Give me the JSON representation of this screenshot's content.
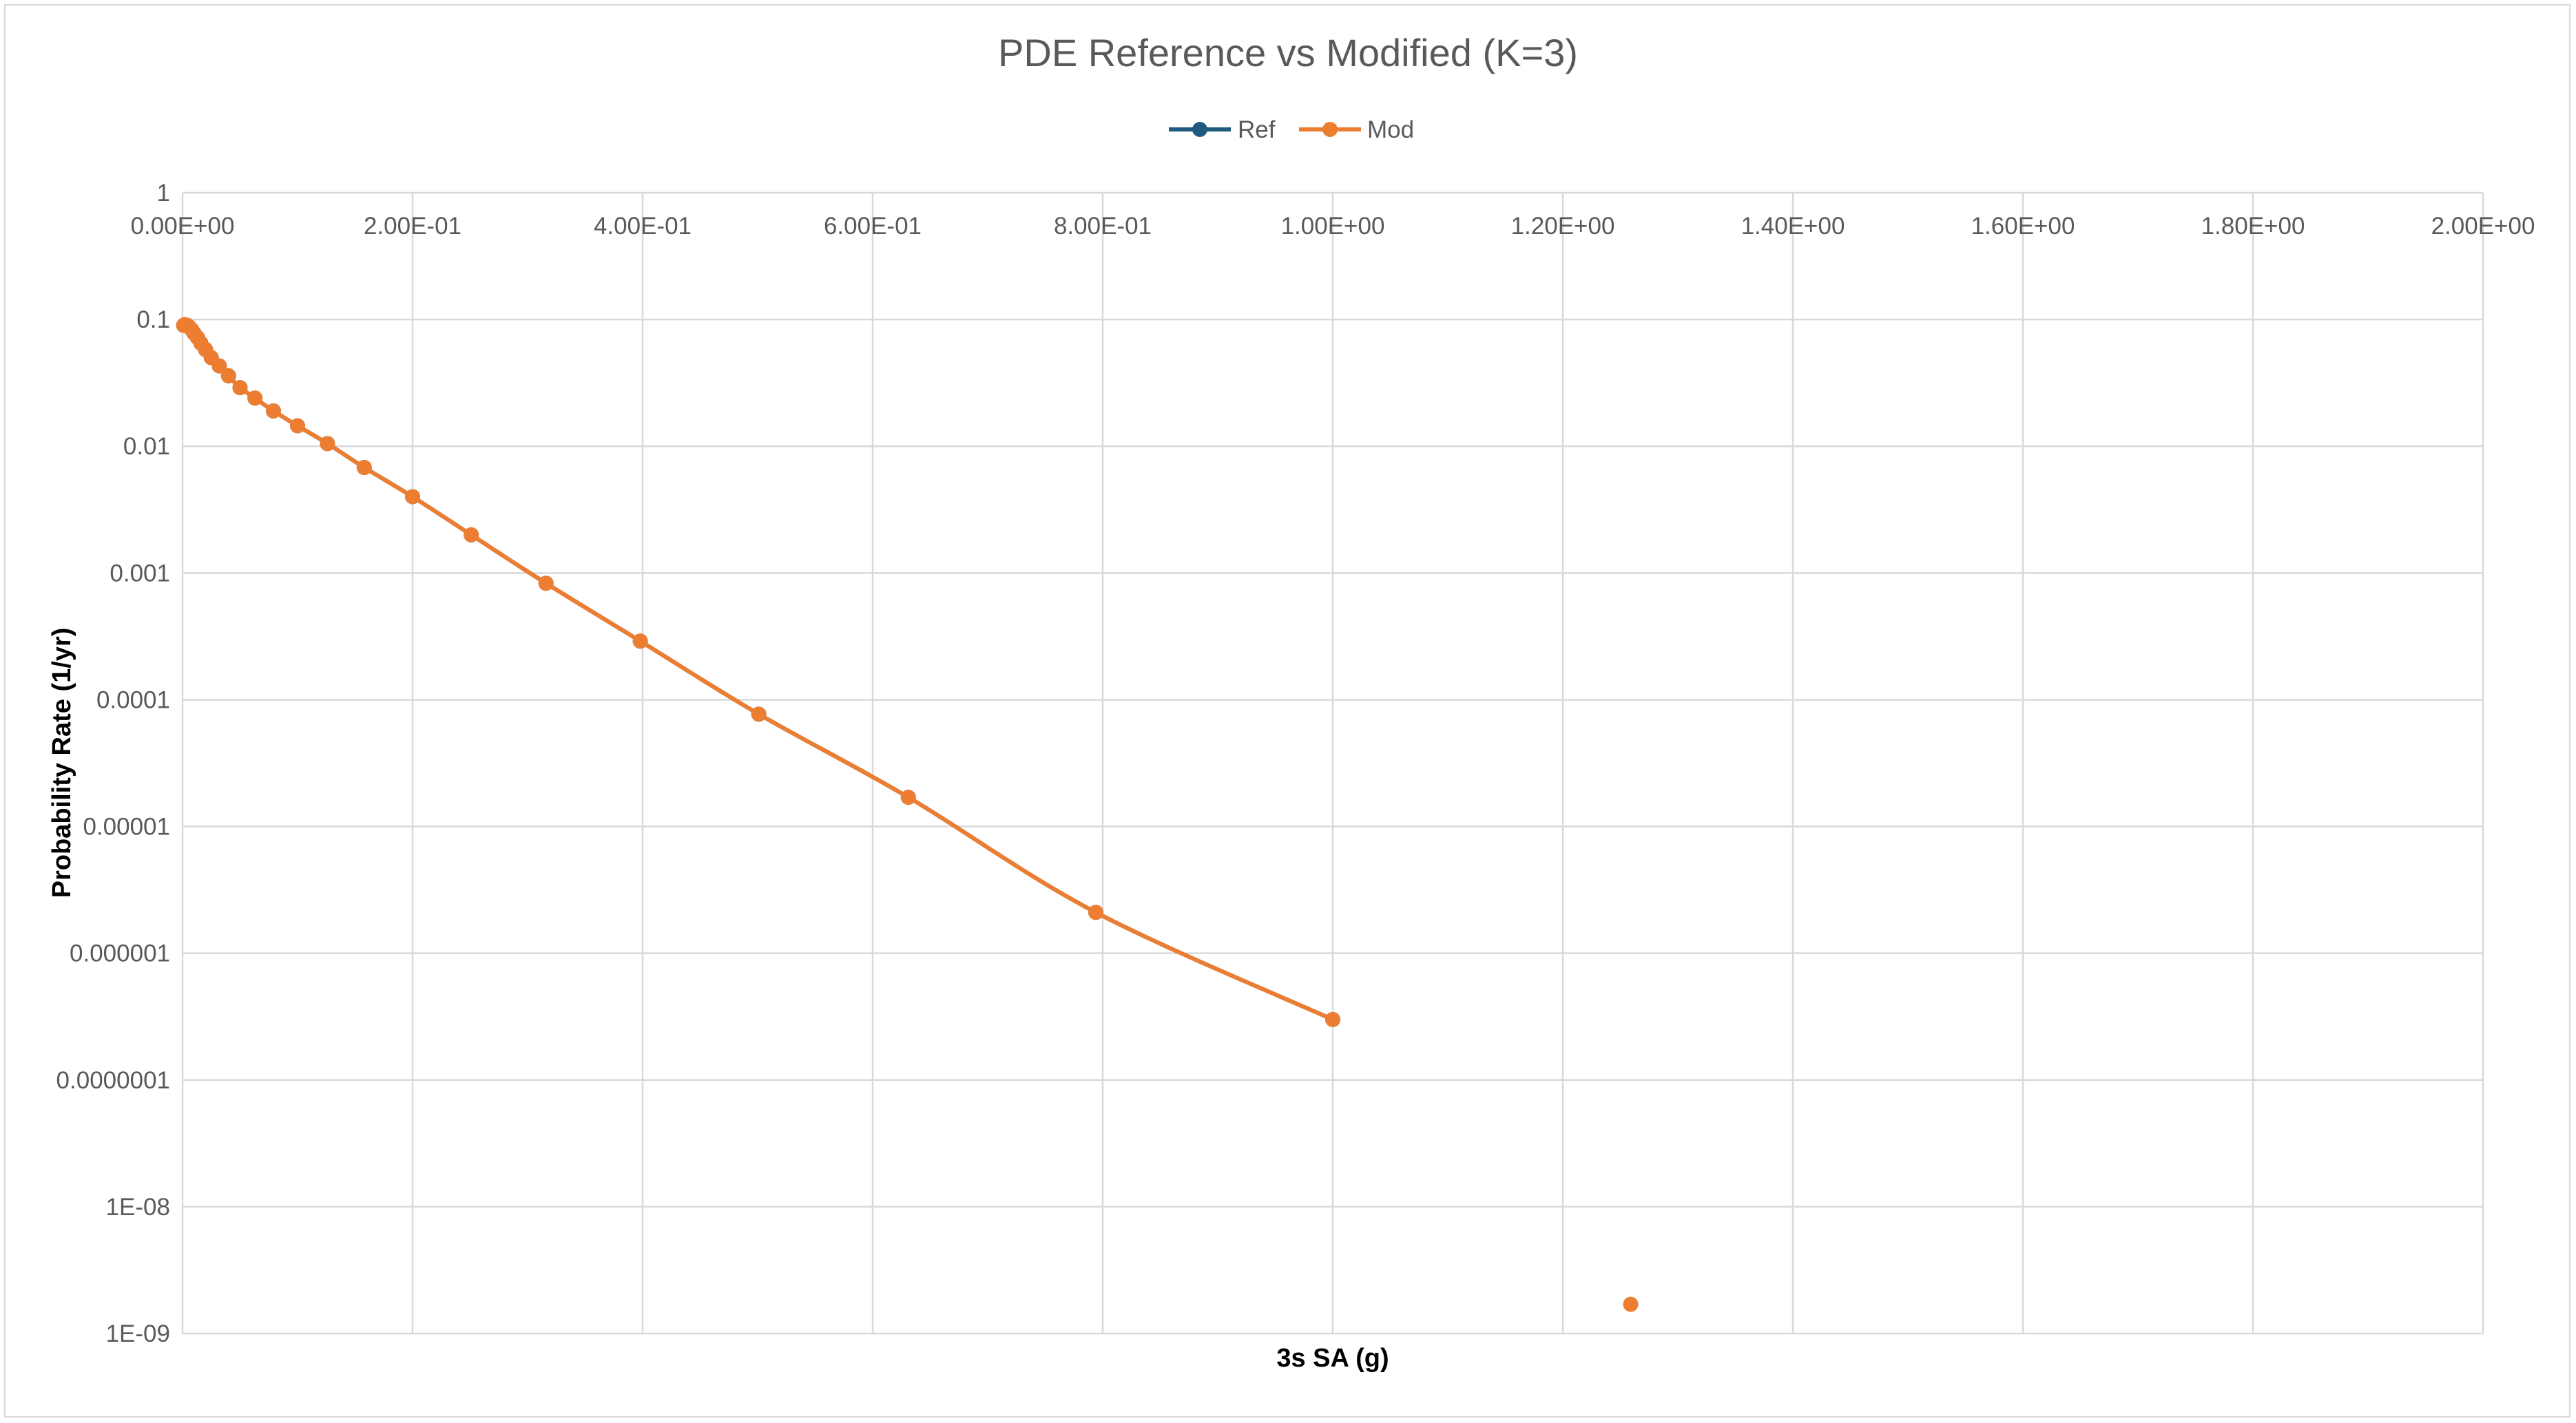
{
  "chart_data": {
    "type": "scatter",
    "title": "PDE Reference vs Modified (K=3)",
    "xlabel": "3s SA (g)",
    "ylabel": "Probability Rate (1/yr)",
    "xlim": [
      0,
      2
    ],
    "ylim": [
      1e-09,
      1
    ],
    "y_scale": "log",
    "x_axis_position": "top",
    "grid": true,
    "legend_position": "top",
    "x_ticks": [
      "0.00E+00",
      "2.00E-01",
      "4.00E-01",
      "6.00E-01",
      "8.00E-01",
      "1.00E+00",
      "1.20E+00",
      "1.40E+00",
      "1.60E+00",
      "1.80E+00",
      "2.00E+00"
    ],
    "y_ticks": [
      "1",
      "0.1",
      "0.01",
      "0.001",
      "0.0001",
      "0.00001",
      "0.000001",
      "0.0000001",
      "1E-08",
      "1E-09"
    ],
    "series": [
      {
        "name": "Ref",
        "color": "#1f5b7f",
        "x": [
          0.001,
          0.002,
          0.004,
          0.006,
          0.008,
          0.01,
          0.013,
          0.016,
          0.02,
          0.025,
          0.032,
          0.04,
          0.05,
          0.063,
          0.079,
          0.1,
          0.126,
          0.158,
          0.2,
          0.251,
          0.316,
          0.398,
          0.501,
          0.631,
          0.794,
          1.0
        ],
        "y": [
          0.09,
          0.091,
          0.09,
          0.087,
          0.083,
          0.078,
          0.072,
          0.065,
          0.058,
          0.05,
          0.043,
          0.036,
          0.029,
          0.024,
          0.019,
          0.0145,
          0.0105,
          0.0068,
          0.004,
          0.002,
          0.00083,
          0.00029,
          7.7e-05,
          1.7e-05,
          2.1e-06,
          3e-07
        ]
      },
      {
        "name": "Mod",
        "color": "#ed7d31",
        "x": [
          0.001,
          0.002,
          0.004,
          0.006,
          0.008,
          0.01,
          0.013,
          0.016,
          0.02,
          0.025,
          0.032,
          0.04,
          0.05,
          0.063,
          0.079,
          0.1,
          0.126,
          0.158,
          0.2,
          0.251,
          0.316,
          0.398,
          0.501,
          0.631,
          0.794,
          1.0,
          1.259
        ],
        "y": [
          0.09,
          0.091,
          0.09,
          0.087,
          0.083,
          0.078,
          0.072,
          0.065,
          0.058,
          0.05,
          0.043,
          0.036,
          0.029,
          0.024,
          0.019,
          0.0145,
          0.0105,
          0.0068,
          0.004,
          0.002,
          0.00083,
          0.00029,
          7.7e-05,
          1.7e-05,
          2.1e-06,
          3e-07,
          1.7e-09
        ]
      }
    ]
  }
}
